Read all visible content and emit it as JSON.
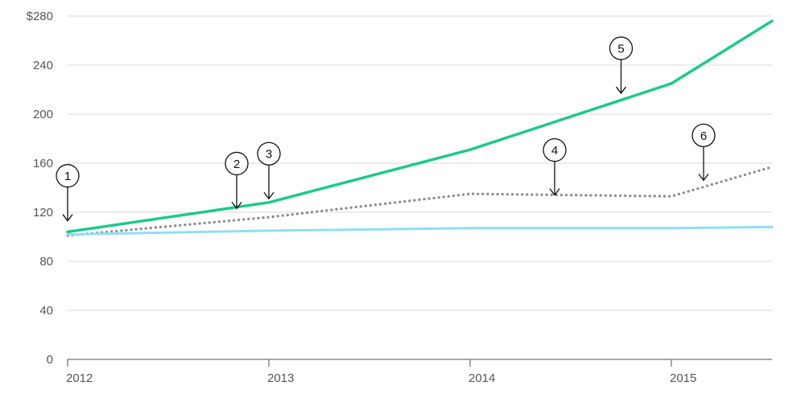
{
  "chart_data": {
    "type": "line",
    "y_ticks": [
      {
        "value": 0,
        "label": "0"
      },
      {
        "value": 40,
        "label": "40"
      },
      {
        "value": 80,
        "label": "80"
      },
      {
        "value": 120,
        "label": "120"
      },
      {
        "value": 160,
        "label": "160"
      },
      {
        "value": 200,
        "label": "200"
      },
      {
        "value": 240,
        "label": "240"
      },
      {
        "value": 280,
        "label": "$280"
      }
    ],
    "x_ticks": [
      {
        "value": 2012,
        "label": "2012"
      },
      {
        "value": 2013,
        "label": "2013"
      },
      {
        "value": 2014,
        "label": "2014"
      },
      {
        "value": 2015,
        "label": "2015"
      }
    ],
    "xlim": [
      2012,
      2015.5
    ],
    "ylim": [
      0,
      280
    ],
    "grid": "horizontal",
    "series": [
      {
        "style": "solid",
        "color": "#1ec98b",
        "points": [
          [
            2012,
            104
          ],
          [
            2013,
            128
          ],
          [
            2014,
            171
          ],
          [
            2015,
            225
          ],
          [
            2015.5,
            276
          ]
        ]
      },
      {
        "style": "dotted",
        "color": "#8a8a8a",
        "points": [
          [
            2012,
            101
          ],
          [
            2013,
            116
          ],
          [
            2014,
            135
          ],
          [
            2015,
            133
          ],
          [
            2015.5,
            157
          ]
        ]
      },
      {
        "style": "solid",
        "color": "#8fdff2",
        "points": [
          [
            2012,
            102
          ],
          [
            2013,
            105
          ],
          [
            2014,
            107
          ],
          [
            2015,
            107
          ],
          [
            2015.5,
            108
          ]
        ]
      }
    ],
    "annotations": [
      {
        "label": "1",
        "x": 2012.0,
        "y": 113
      },
      {
        "label": "2",
        "x": 2012.84,
        "y": 123
      },
      {
        "label": "3",
        "x": 2013.0,
        "y": 131
      },
      {
        "label": "4",
        "x": 2014.42,
        "y": 134
      },
      {
        "label": "5",
        "x": 2014.75,
        "y": 217
      },
      {
        "label": "6",
        "x": 2015.16,
        "y": 146
      }
    ]
  }
}
